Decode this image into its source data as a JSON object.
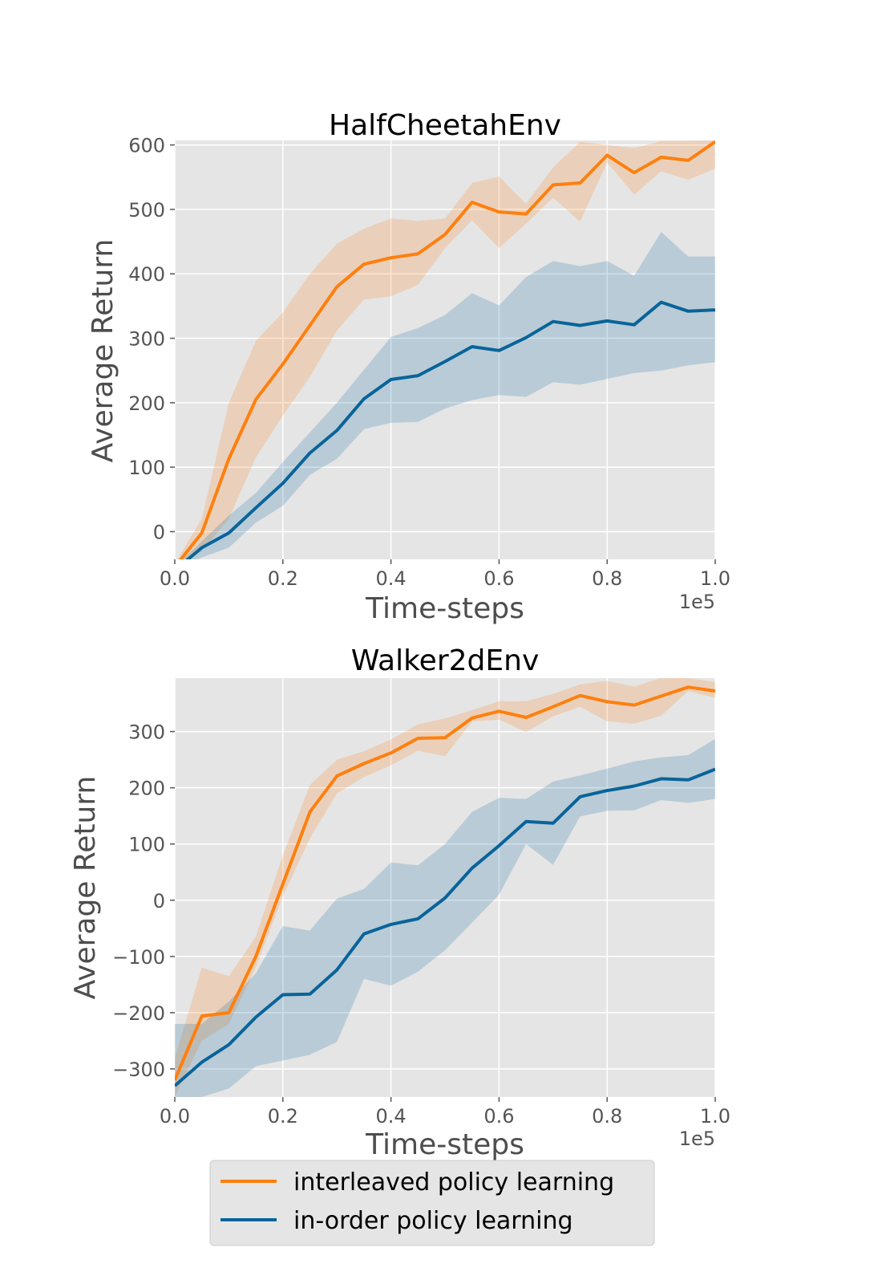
{
  "legend": {
    "position": "bottom-center",
    "entries": [
      {
        "label": "interleaved policy learning",
        "color": "#ff7f0e"
      },
      {
        "label": "in-order policy learning",
        "color": "#08649a"
      }
    ]
  },
  "chart_data": [
    {
      "type": "line",
      "title": "HalfCheetahEnv",
      "xlabel": "Time-steps",
      "ylabel": "Average Return",
      "x_offset_label": "1e5",
      "xlim": [
        0,
        1.0
      ],
      "ylim": [
        -43,
        607
      ],
      "xticks": [
        "0.0",
        "0.2",
        "0.4",
        "0.6",
        "0.8",
        "1.0"
      ],
      "yticks": [
        "0",
        "100",
        "200",
        "300",
        "400",
        "500",
        "600"
      ],
      "grid": true,
      "x": [
        0,
        0.05,
        0.1,
        0.15,
        0.2,
        0.25,
        0.3,
        0.35,
        0.4,
        0.45,
        0.5,
        0.55,
        0.6,
        0.65,
        0.7,
        0.75,
        0.8,
        0.85,
        0.9,
        0.95,
        1.0
      ],
      "series": [
        {
          "name": "interleaved policy learning",
          "color": "#ff7f0e",
          "values": [
            -55,
            -2,
            113,
            205,
            260,
            320,
            380,
            415,
            425,
            431,
            461,
            511,
            496,
            493,
            538,
            541,
            584,
            557,
            581,
            576,
            605
          ],
          "lower": [
            -60,
            -30,
            20,
            115,
            180,
            240,
            312,
            360,
            365,
            383,
            440,
            483,
            440,
            478,
            518,
            481,
            573,
            523,
            559,
            546,
            563
          ],
          "upper": [
            -50,
            20,
            200,
            296,
            340,
            400,
            447,
            470,
            486,
            482,
            486,
            541,
            551,
            509,
            565,
            605,
            600,
            595,
            606,
            606,
            607
          ]
        },
        {
          "name": "in-order policy learning",
          "color": "#08649a",
          "values": [
            -60,
            -25,
            -2,
            37,
            75,
            122,
            157,
            206,
            236,
            242,
            264,
            287,
            281,
            301,
            326,
            320,
            327,
            321,
            356,
            342,
            344
          ],
          "lower": [
            -60,
            -40,
            -25,
            14,
            40,
            88,
            113,
            159,
            169,
            170,
            191,
            204,
            212,
            209,
            232,
            228,
            237,
            246,
            250,
            258,
            263
          ],
          "upper": [
            -55,
            -15,
            25,
            60,
            108,
            154,
            200,
            251,
            302,
            316,
            336,
            370,
            351,
            395,
            420,
            412,
            420,
            397,
            465,
            427,
            427
          ]
        }
      ]
    },
    {
      "type": "line",
      "title": "Walker2dEnv",
      "xlabel": "Time-steps",
      "ylabel": "Average Return",
      "x_offset_label": "1e5",
      "xlim": [
        0,
        1.0
      ],
      "ylim": [
        -350,
        395
      ],
      "xticks": [
        "0.0",
        "0.2",
        "0.4",
        "0.6",
        "0.8",
        "1.0"
      ],
      "yticks": [
        "−300",
        "−200",
        "−100",
        "0",
        "100",
        "200",
        "300"
      ],
      "grid": true,
      "x": [
        0,
        0.05,
        0.1,
        0.15,
        0.2,
        0.25,
        0.3,
        0.35,
        0.4,
        0.45,
        0.5,
        0.55,
        0.6,
        0.65,
        0.7,
        0.75,
        0.8,
        0.85,
        0.9,
        0.95,
        1.0
      ],
      "series": [
        {
          "name": "interleaved policy learning",
          "color": "#ff7f0e",
          "values": [
            -320,
            -206,
            -200,
            -100,
            29,
            157,
            221,
            243,
            262,
            288,
            289,
            324,
            336,
            325,
            344,
            364,
            353,
            347,
            363,
            379,
            372
          ],
          "lower": [
            -350,
            -250,
            -220,
            -120,
            7,
            110,
            190,
            219,
            240,
            266,
            256,
            318,
            321,
            299,
            327,
            344,
            318,
            314,
            328,
            372,
            360
          ],
          "upper": [
            -280,
            -120,
            -135,
            -65,
            80,
            205,
            250,
            265,
            286,
            313,
            323,
            338,
            354,
            354,
            367,
            384,
            390,
            380,
            395,
            395,
            388
          ]
        },
        {
          "name": "in-order policy learning",
          "color": "#08649a",
          "values": [
            -330,
            -288,
            -257,
            -208,
            -168,
            -167,
            -124,
            -60,
            -43,
            -33,
            4,
            57,
            97,
            140,
            137,
            184,
            195,
            203,
            216,
            214,
            233
          ],
          "lower": [
            -350,
            -350,
            -335,
            -295,
            -285,
            -275,
            -252,
            -140,
            -152,
            -127,
            -89,
            -40,
            10,
            100,
            63,
            149,
            159,
            160,
            178,
            173,
            180
          ],
          "upper": [
            -220,
            -220,
            -180,
            -130,
            -46,
            -54,
            3,
            20,
            67,
            62,
            100,
            157,
            182,
            180,
            211,
            222,
            234,
            247,
            254,
            258,
            287
          ]
        }
      ]
    }
  ]
}
